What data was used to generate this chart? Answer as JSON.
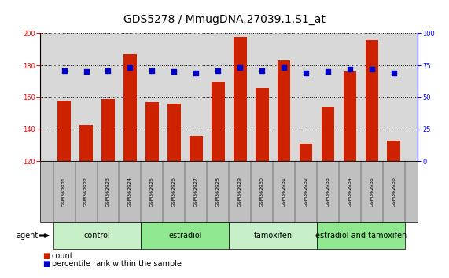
{
  "title": "GDS5278 / MmugDNA.27039.1.S1_at",
  "samples": [
    "GSM362921",
    "GSM362922",
    "GSM362923",
    "GSM362924",
    "GSM362925",
    "GSM362926",
    "GSM362927",
    "GSM362928",
    "GSM362929",
    "GSM362930",
    "GSM362931",
    "GSM362932",
    "GSM362933",
    "GSM362934",
    "GSM362935",
    "GSM362936"
  ],
  "counts": [
    158,
    143,
    159,
    187,
    157,
    156,
    136,
    170,
    198,
    166,
    183,
    131,
    154,
    176,
    196,
    133
  ],
  "percentiles": [
    71,
    70,
    71,
    73,
    71,
    70,
    69,
    71,
    73,
    71,
    73,
    69,
    70,
    72,
    72,
    69
  ],
  "groups": [
    {
      "label": "control",
      "start": 0,
      "end": 4,
      "color": "#c8f0c8"
    },
    {
      "label": "estradiol",
      "start": 4,
      "end": 8,
      "color": "#90e890"
    },
    {
      "label": "tamoxifen",
      "start": 8,
      "end": 12,
      "color": "#c8f0c8"
    },
    {
      "label": "estradiol and tamoxifen",
      "start": 12,
      "end": 16,
      "color": "#90e890"
    }
  ],
  "ylim_left": [
    120,
    200
  ],
  "ylim_right": [
    0,
    100
  ],
  "yticks_left": [
    120,
    140,
    160,
    180,
    200
  ],
  "yticks_right": [
    0,
    25,
    50,
    75,
    100
  ],
  "bar_color": "#cc2200",
  "dot_color": "#0000cc",
  "bar_width": 0.6,
  "background_color": "#ffffff",
  "plot_bg_color": "#d8d8d8",
  "sample_bg_color": "#c0c0c0",
  "title_fontsize": 10,
  "tick_fontsize": 6,
  "group_fontsize": 7,
  "legend_fontsize": 7
}
